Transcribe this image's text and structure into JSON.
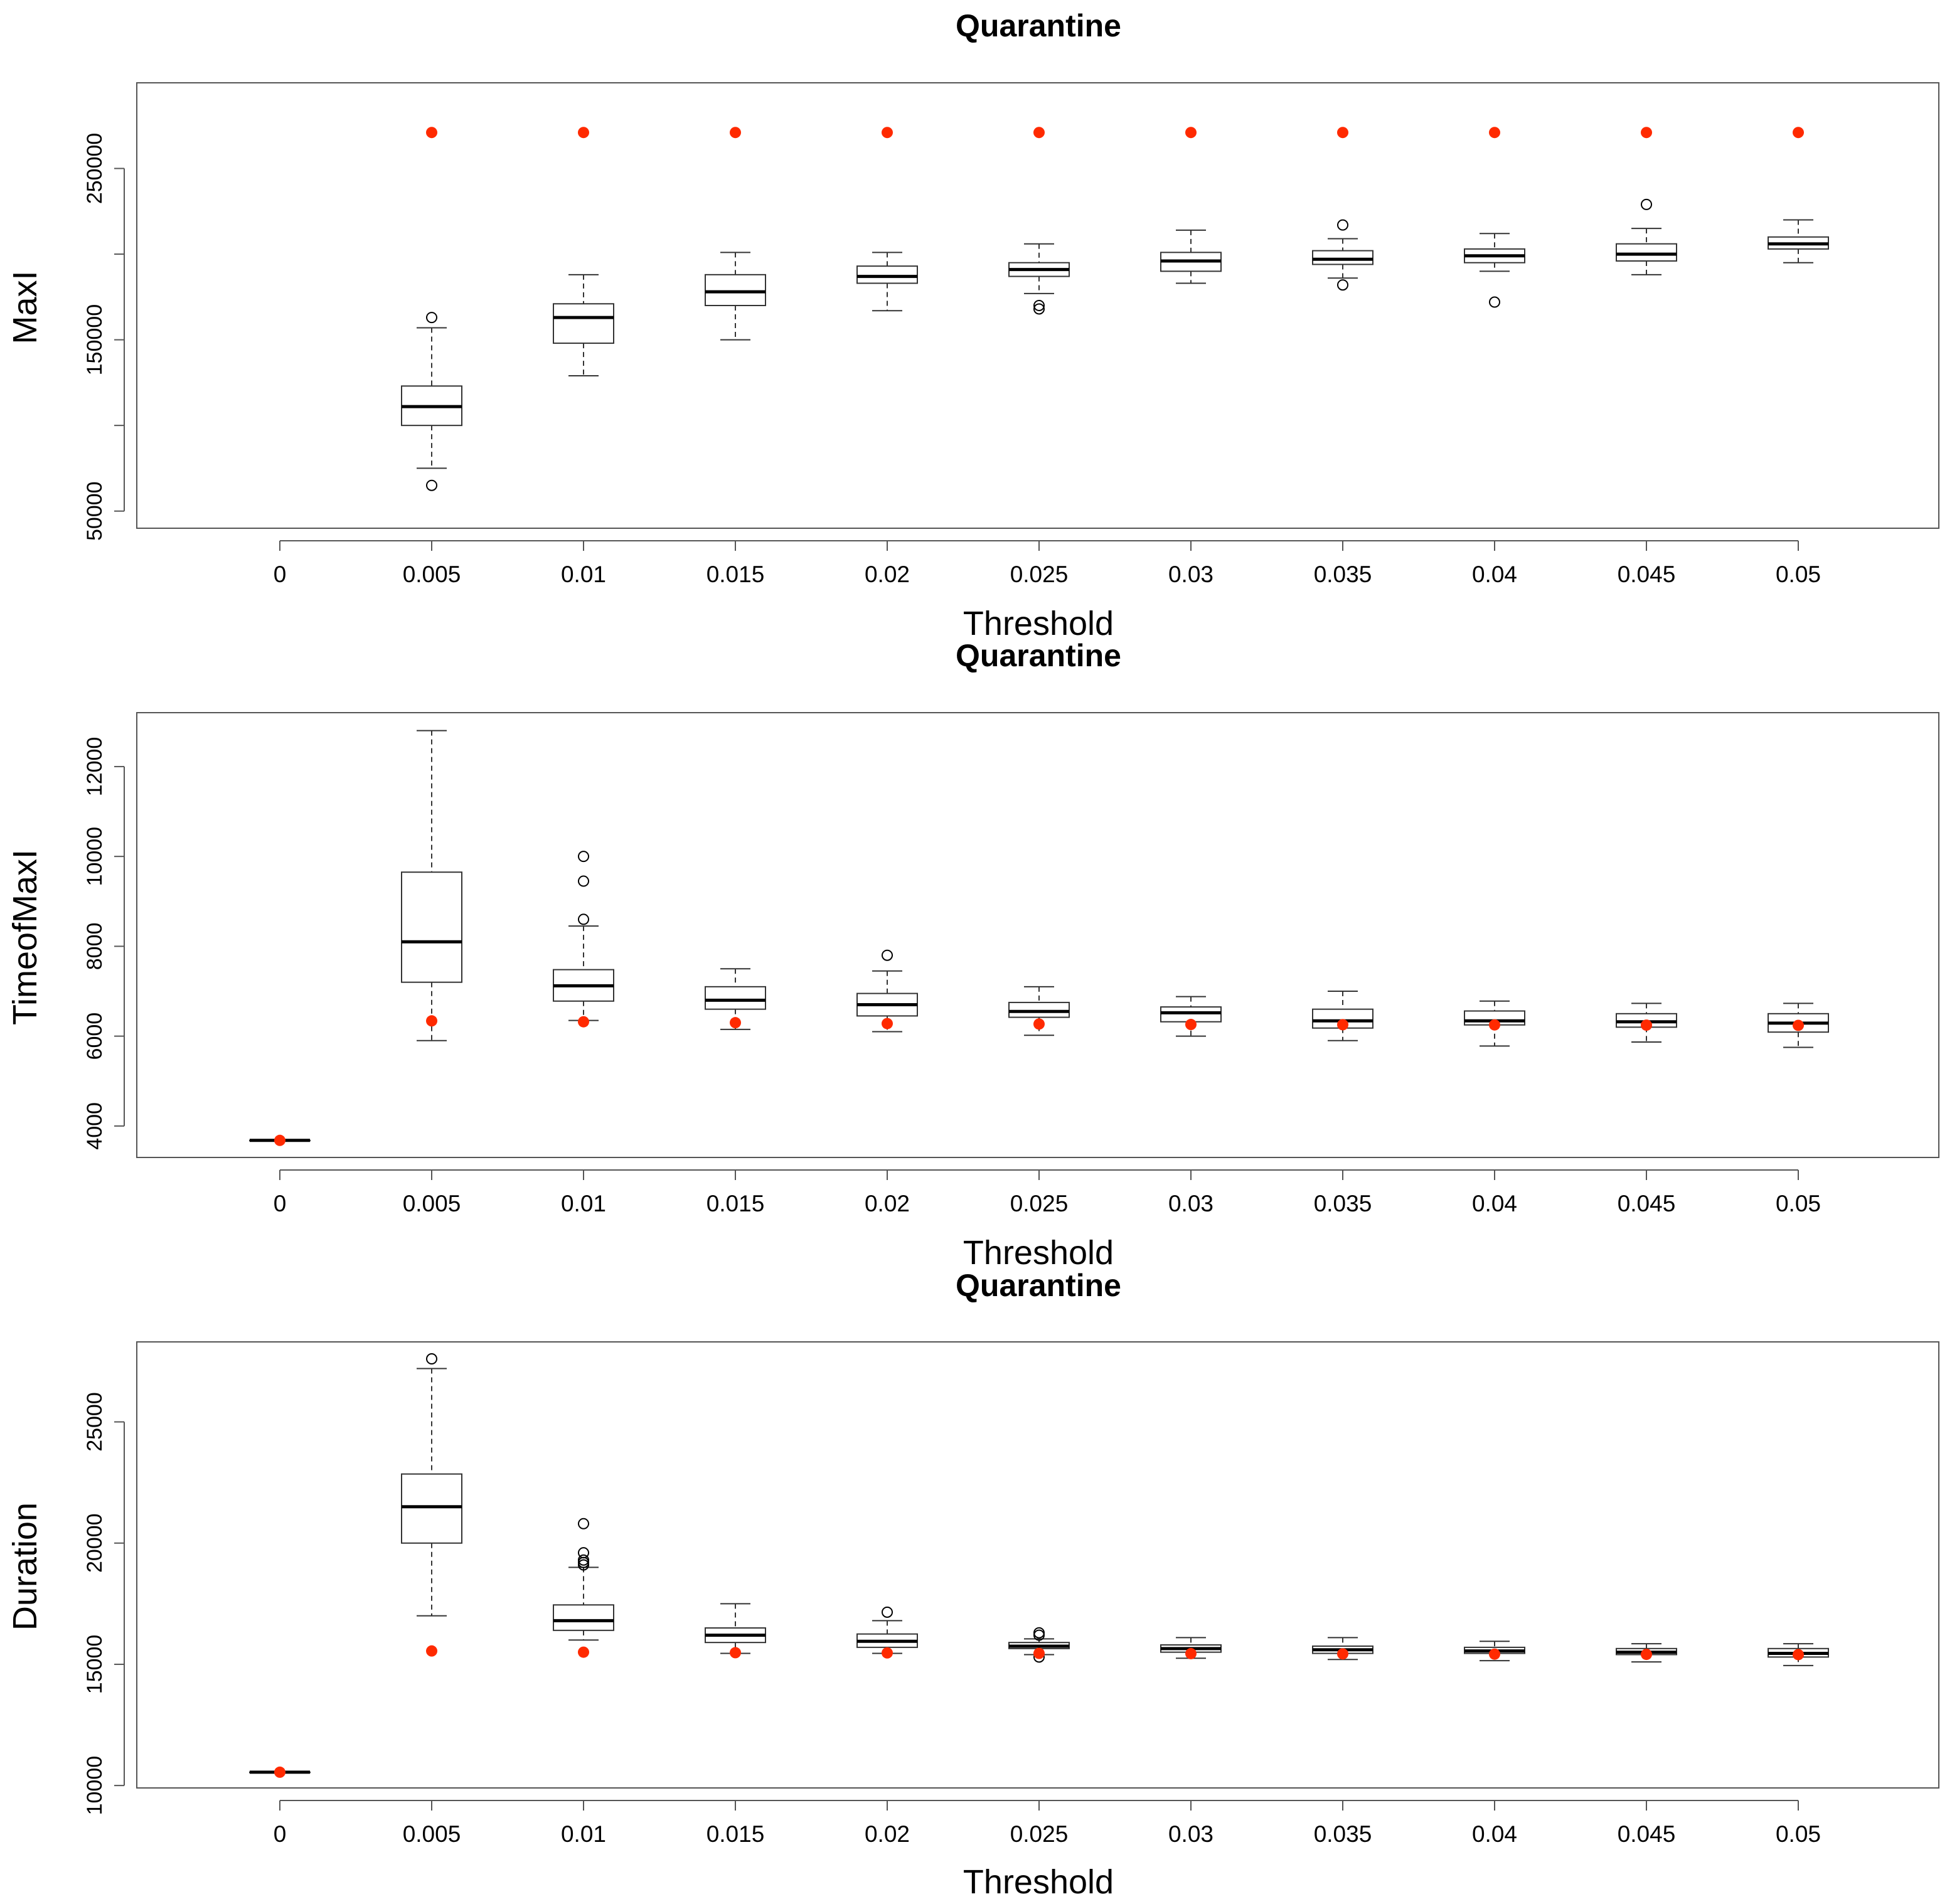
{
  "chart_data": [
    {
      "type": "boxplot",
      "title": "Quarantine",
      "xlabel": "Threshold",
      "ylabel": "MaxI",
      "categories": [
        "0",
        "0.005",
        "0.01",
        "0.015",
        "0.02",
        "0.025",
        "0.03",
        "0.035",
        "0.04",
        "0.045",
        "0.05"
      ],
      "ylim": [
        40000,
        300000
      ],
      "yticks": [
        50000,
        100000,
        150000,
        200000,
        250000
      ],
      "ytick_labels": [
        "50000",
        "",
        "150000",
        "",
        "250000"
      ],
      "boxes": [
        null,
        {
          "whisker_low": 75000,
          "q1": 100000,
          "median": 111000,
          "q3": 123000,
          "whisker_high": 157000,
          "outliers": [
            65000,
            163000
          ]
        },
        {
          "whisker_low": 129000,
          "q1": 148000,
          "median": 163000,
          "q3": 171000,
          "whisker_high": 188000,
          "outliers": []
        },
        {
          "whisker_low": 150000,
          "q1": 170000,
          "median": 178000,
          "q3": 188000,
          "whisker_high": 201000,
          "outliers": []
        },
        {
          "whisker_low": 167000,
          "q1": 183000,
          "median": 187000,
          "q3": 193000,
          "whisker_high": 201000,
          "outliers": []
        },
        {
          "whisker_low": 177000,
          "q1": 187000,
          "median": 191000,
          "q3": 195000,
          "whisker_high": 206000,
          "outliers": [
            168000,
            170000
          ]
        },
        {
          "whisker_low": 183000,
          "q1": 190000,
          "median": 196000,
          "q3": 201000,
          "whisker_high": 214000,
          "outliers": []
        },
        {
          "whisker_low": 186000,
          "q1": 194000,
          "median": 197000,
          "q3": 202000,
          "whisker_high": 209000,
          "outliers": [
            182000,
            217000
          ]
        },
        {
          "whisker_low": 190000,
          "q1": 195000,
          "median": 199000,
          "q3": 203000,
          "whisker_high": 212000,
          "outliers": [
            172000
          ]
        },
        {
          "whisker_low": 188000,
          "q1": 196000,
          "median": 200000,
          "q3": 206000,
          "whisker_high": 215000,
          "outliers": [
            229000
          ]
        },
        {
          "whisker_low": 195000,
          "q1": 203000,
          "median": 206000,
          "q3": 210000,
          "whisker_high": 220000,
          "outliers": []
        }
      ],
      "reference_points": [
        null,
        271000,
        271000,
        271000,
        271000,
        271000,
        271000,
        271000,
        271000,
        271000,
        271000
      ],
      "reference_color": "#ff2a00"
    },
    {
      "type": "boxplot",
      "title": "Quarantine",
      "xlabel": "Threshold",
      "ylabel": "TimeofMaxI",
      "categories": [
        "0",
        "0.005",
        "0.01",
        "0.015",
        "0.02",
        "0.025",
        "0.03",
        "0.035",
        "0.04",
        "0.045",
        "0.05"
      ],
      "ylim": [
        3300,
        13200
      ],
      "yticks": [
        4000,
        6000,
        8000,
        10000,
        12000
      ],
      "ytick_labels": [
        "4000",
        "6000",
        "8000",
        "10000",
        "12000"
      ],
      "boxes": [
        {
          "whisker_low": 3680,
          "q1": 3680,
          "median": 3680,
          "q3": 3680,
          "whisker_high": 3680,
          "outliers": []
        },
        {
          "whisker_low": 5900,
          "q1": 7200,
          "median": 8100,
          "q3": 9650,
          "whisker_high": 12800,
          "outliers": []
        },
        {
          "whisker_low": 6350,
          "q1": 6780,
          "median": 7120,
          "q3": 7480,
          "whisker_high": 8450,
          "outliers": [
            8600,
            9450,
            10000
          ]
        },
        {
          "whisker_low": 6150,
          "q1": 6600,
          "median": 6800,
          "q3": 7100,
          "whisker_high": 7500,
          "outliers": []
        },
        {
          "whisker_low": 6100,
          "q1": 6450,
          "median": 6700,
          "q3": 6950,
          "whisker_high": 7450,
          "outliers": [
            7800
          ]
        },
        {
          "whisker_low": 6020,
          "q1": 6420,
          "median": 6550,
          "q3": 6750,
          "whisker_high": 7100,
          "outliers": []
        },
        {
          "whisker_low": 6000,
          "q1": 6320,
          "median": 6520,
          "q3": 6650,
          "whisker_high": 6880,
          "outliers": []
        },
        {
          "whisker_low": 5900,
          "q1": 6180,
          "median": 6340,
          "q3": 6600,
          "whisker_high": 7000,
          "outliers": []
        },
        {
          "whisker_low": 5780,
          "q1": 6250,
          "median": 6340,
          "q3": 6560,
          "whisker_high": 6780,
          "outliers": []
        },
        {
          "whisker_low": 5870,
          "q1": 6200,
          "median": 6320,
          "q3": 6500,
          "whisker_high": 6730,
          "outliers": []
        },
        {
          "whisker_low": 5750,
          "q1": 6090,
          "median": 6290,
          "q3": 6500,
          "whisker_high": 6730,
          "outliers": []
        }
      ],
      "reference_points": [
        3680,
        6340,
        6320,
        6300,
        6280,
        6270,
        6260,
        6255,
        6250,
        6245,
        6240
      ],
      "reference_color": "#ff2a00"
    },
    {
      "type": "boxplot",
      "title": "Quarantine",
      "xlabel": "Threshold",
      "ylabel": "Duration",
      "categories": [
        "0",
        "0.005",
        "0.01",
        "0.015",
        "0.02",
        "0.025",
        "0.03",
        "0.035",
        "0.04",
        "0.045",
        "0.05"
      ],
      "ylim": [
        9900,
        28300
      ],
      "yticks": [
        10000,
        15000,
        20000,
        25000
      ],
      "ytick_labels": [
        "10000",
        "15000",
        "20000",
        "25000"
      ],
      "boxes": [
        {
          "whisker_low": 10550,
          "q1": 10550,
          "median": 10550,
          "q3": 10550,
          "whisker_high": 10550,
          "outliers": []
        },
        {
          "whisker_low": 17000,
          "q1": 20000,
          "median": 21500,
          "q3": 22850,
          "whisker_high": 27200,
          "outliers": [
            27600
          ]
        },
        {
          "whisker_low": 16000,
          "q1": 16400,
          "median": 16800,
          "q3": 17450,
          "whisker_high": 19000,
          "outliers": [
            19100,
            19200,
            19300,
            19600,
            20800
          ]
        },
        {
          "whisker_low": 15450,
          "q1": 15900,
          "median": 16200,
          "q3": 16500,
          "whisker_high": 17500,
          "outliers": []
        },
        {
          "whisker_low": 15450,
          "q1": 15700,
          "median": 15950,
          "q3": 16250,
          "whisker_high": 16800,
          "outliers": [
            17150
          ]
        },
        {
          "whisker_low": 15400,
          "q1": 15650,
          "median": 15750,
          "q3": 15900,
          "whisker_high": 16050,
          "outliers": [
            15300,
            16200,
            16300
          ]
        },
        {
          "whisker_low": 15250,
          "q1": 15500,
          "median": 15650,
          "q3": 15800,
          "whisker_high": 16100,
          "outliers": []
        },
        {
          "whisker_low": 15200,
          "q1": 15450,
          "median": 15600,
          "q3": 15750,
          "whisker_high": 16100,
          "outliers": []
        },
        {
          "whisker_low": 15150,
          "q1": 15450,
          "median": 15550,
          "q3": 15700,
          "whisker_high": 15950,
          "outliers": []
        },
        {
          "whisker_low": 15100,
          "q1": 15400,
          "median": 15500,
          "q3": 15650,
          "whisker_high": 15850,
          "outliers": []
        },
        {
          "whisker_low": 14950,
          "q1": 15300,
          "median": 15450,
          "q3": 15650,
          "whisker_high": 15850,
          "outliers": []
        }
      ],
      "reference_points": [
        10550,
        15550,
        15500,
        15480,
        15470,
        15450,
        15440,
        15430,
        15420,
        15410,
        15400
      ],
      "reference_color": "#ff2a00"
    }
  ]
}
